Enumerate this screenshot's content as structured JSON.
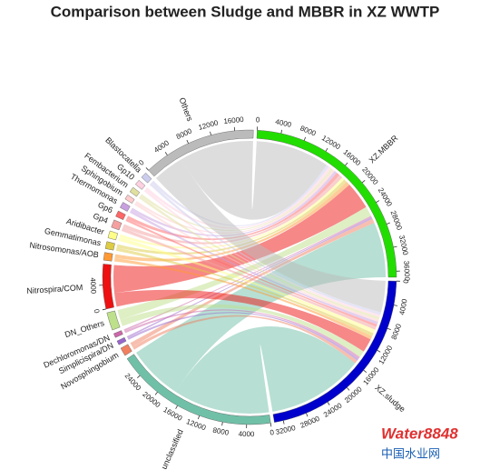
{
  "chart_data": {
    "type": "chord",
    "title": "Comparison between Sludge and MBBR in XZ WWTP",
    "watermark": [
      "Water8848",
      "中国水业网"
    ],
    "targets": [
      {
        "name": "XZ.MBBR",
        "color": "#22dd00",
        "ticks": [
          0,
          4000,
          8000,
          12000,
          16000,
          20000,
          24000,
          28000,
          32000,
          36000
        ]
      },
      {
        "name": "XZ.sludge",
        "color": "#0000cc",
        "ticks": [
          0,
          4000,
          8000,
          12000,
          16000,
          20000,
          24000,
          28000,
          32000
        ]
      }
    ],
    "sources": [
      {
        "name": "unclassified",
        "color": "#70c0a8",
        "values": [
          10000,
          17500
        ],
        "ticks": [
          0,
          4000,
          8000,
          12000,
          16000,
          20000,
          24000
        ]
      },
      {
        "name": "Novosphingobium",
        "color": "#f08060",
        "values": [
          800,
          600
        ]
      },
      {
        "name": "Simplicispira/DN",
        "color": "#9966cc",
        "values": [
          300,
          400
        ]
      },
      {
        "name": "Dechloromonas/DN",
        "color": "#cc66aa",
        "values": [
          300,
          400
        ]
      },
      {
        "name": "DN_Others",
        "color": "#bde08a",
        "values": [
          1800,
          1200
        ]
      },
      {
        "name": "Nitrospira/COM",
        "color": "#ee1111",
        "values": [
          5000,
          2500
        ],
        "ticks": [
          0,
          4000
        ]
      },
      {
        "name": "Nitrosomonas/AOB",
        "color": "#ff9933",
        "values": [
          700,
          600
        ]
      },
      {
        "name": "Gemmatimonas",
        "color": "#ddcc44",
        "values": [
          600,
          600
        ]
      },
      {
        "name": "Aridibacter",
        "color": "#ffff88",
        "values": [
          500,
          700
        ]
      },
      {
        "name": "Gp4",
        "color": "#f4a0a0",
        "values": [
          700,
          600
        ]
      },
      {
        "name": "Gp6",
        "color": "#ff6666",
        "values": [
          600,
          400
        ]
      },
      {
        "name": "Thermomonas",
        "color": "#c8a0e0",
        "values": [
          500,
          500
        ]
      },
      {
        "name": "Sphingobium",
        "color": "#ffcccc",
        "values": [
          400,
          400
        ]
      },
      {
        "name": "Fembacterium",
        "color": "#e0e0a0",
        "values": [
          400,
          500
        ]
      },
      {
        "name": "Gp10",
        "color": "#ffd0e0",
        "values": [
          500,
          400
        ]
      },
      {
        "name": "Blastocatella",
        "color": "#ccccee",
        "values": [
          500,
          500
        ]
      },
      {
        "name": "Others",
        "color": "#bbbbbb",
        "values": [
          13400,
          5700
        ],
        "ticks": [
          0,
          4000,
          8000,
          12000,
          16000
        ]
      }
    ]
  }
}
